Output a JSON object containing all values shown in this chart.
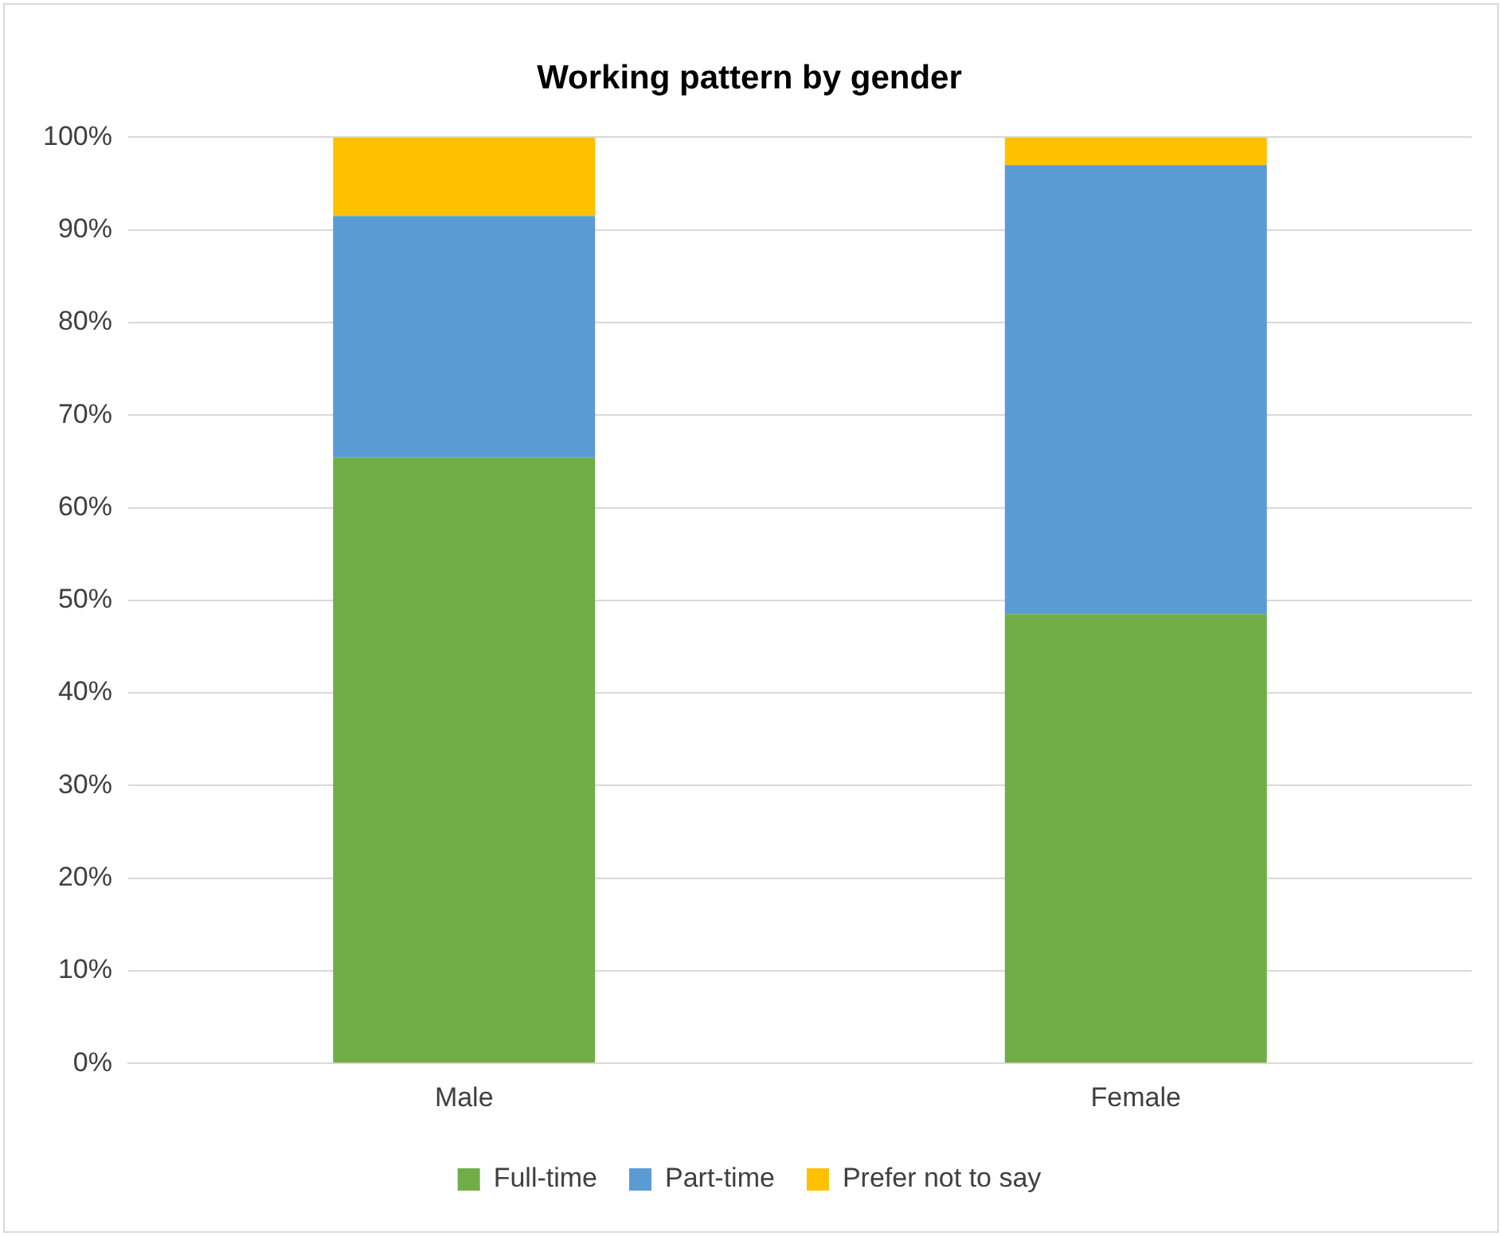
{
  "chart_data": {
    "type": "bar",
    "title": "Working pattern by gender",
    "categories": [
      "Male",
      "Female"
    ],
    "stacked": true,
    "series": [
      {
        "name": "Full-time",
        "color": "#70ad47",
        "values": [
          65.4,
          48.5
        ]
      },
      {
        "name": "Part-time",
        "color": "#5b9bd5",
        "values": [
          26.1,
          48.5
        ]
      },
      {
        "name": "Prefer not to say",
        "color": "#ffc000",
        "values": [
          8.5,
          3.0
        ]
      }
    ],
    "ylim": [
      0,
      100
    ],
    "yticks": [
      {
        "value": 0,
        "label": "0%"
      },
      {
        "value": 10,
        "label": "10%"
      },
      {
        "value": 20,
        "label": "20%"
      },
      {
        "value": 30,
        "label": "30%"
      },
      {
        "value": 40,
        "label": "40%"
      },
      {
        "value": 50,
        "label": "50%"
      },
      {
        "value": 60,
        "label": "60%"
      },
      {
        "value": 70,
        "label": "70%"
      },
      {
        "value": 80,
        "label": "80%"
      },
      {
        "value": 90,
        "label": "90%"
      },
      {
        "value": 100,
        "label": "100%"
      }
    ],
    "grid": "y",
    "legend": "bottom"
  }
}
